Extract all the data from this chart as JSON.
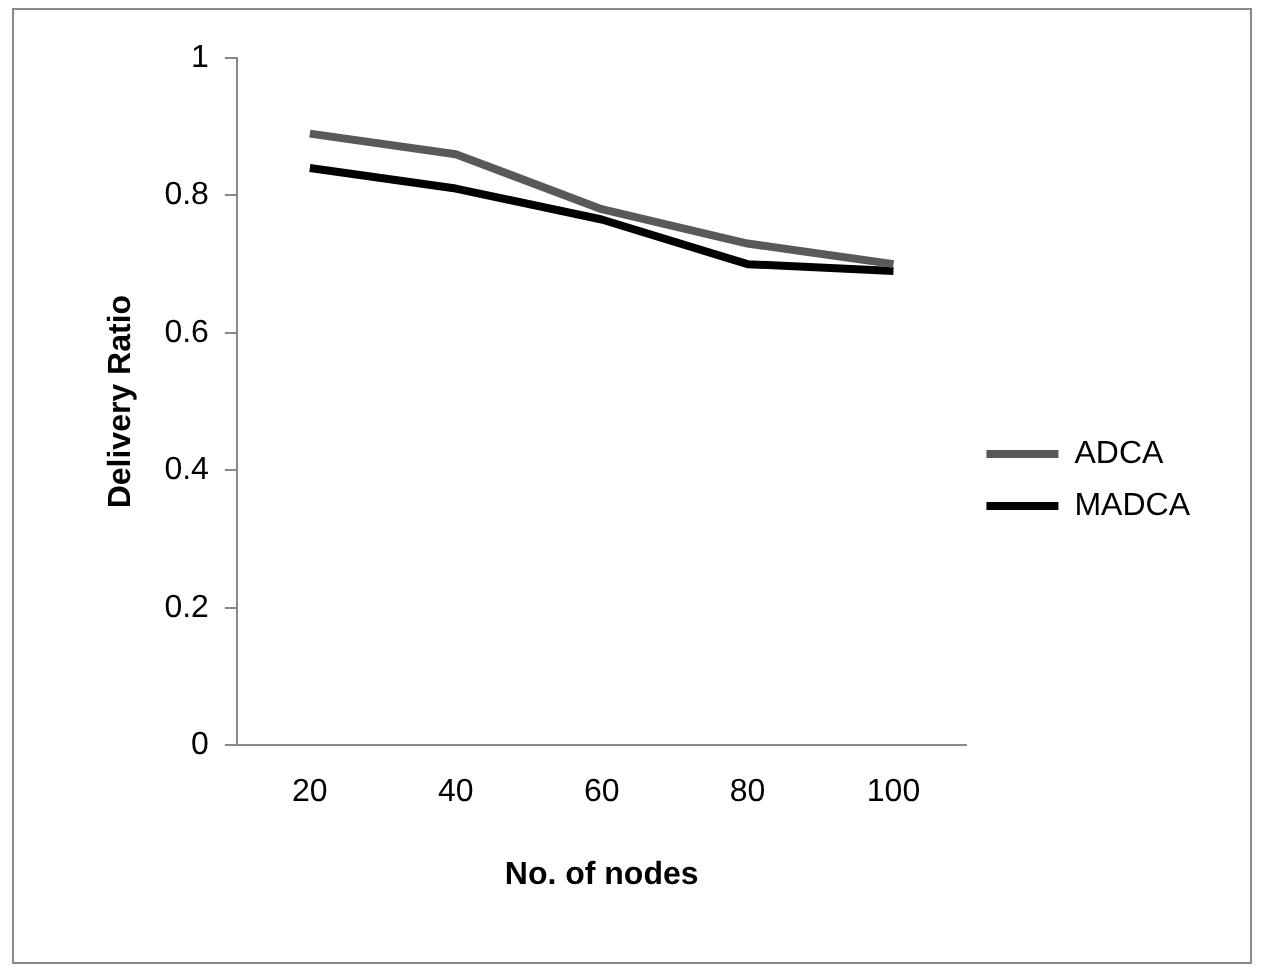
{
  "chart_data": {
    "type": "line",
    "xlabel": "No. of nodes",
    "ylabel": "Delivery Ratio",
    "categories": [
      "20",
      "40",
      "60",
      "80",
      "100"
    ],
    "series": [
      {
        "name": "ADCA",
        "color": "#595959",
        "values": [
          0.89,
          0.86,
          0.78,
          0.73,
          0.7
        ]
      },
      {
        "name": "MADCA",
        "color": "#000000",
        "values": [
          0.84,
          0.81,
          0.765,
          0.7,
          0.69
        ]
      }
    ],
    "ylim": [
      0,
      1
    ],
    "yticks": [
      0,
      0.2,
      0.4,
      0.6,
      0.8,
      1
    ],
    "grid": false,
    "legend": "right",
    "marker": "none",
    "line_style": "solid"
  }
}
